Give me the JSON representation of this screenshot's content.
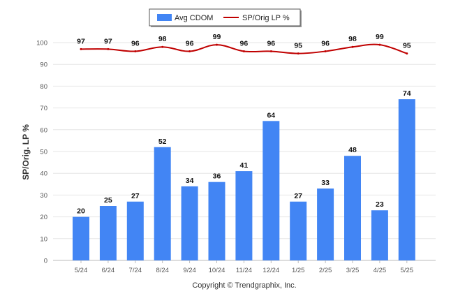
{
  "chart_data": {
    "type": "bar",
    "categories": [
      "5/24",
      "6/24",
      "7/24",
      "8/24",
      "9/24",
      "10/24",
      "11/24",
      "12/24",
      "1/25",
      "2/25",
      "3/25",
      "4/25",
      "5/25"
    ],
    "series": [
      {
        "name": "Avg CDOM",
        "type": "bar",
        "color": "#4285f4",
        "values": [
          20,
          25,
          27,
          52,
          34,
          36,
          41,
          64,
          27,
          33,
          48,
          23,
          74
        ]
      },
      {
        "name": "SP/Orig LP %",
        "type": "line",
        "color": "#c00000",
        "values": [
          97,
          97,
          96,
          98,
          96,
          99,
          96,
          96,
          95,
          96,
          98,
          99,
          95
        ]
      }
    ],
    "ylabel": "SP/Orig. LP %",
    "ylim": [
      0,
      100
    ],
    "yticks": [
      0,
      10,
      20,
      30,
      40,
      50,
      60,
      70,
      80,
      90,
      100
    ],
    "grid": true,
    "legend_position": "top-center"
  },
  "footer": "Copyright © Trendgraphix, Inc."
}
